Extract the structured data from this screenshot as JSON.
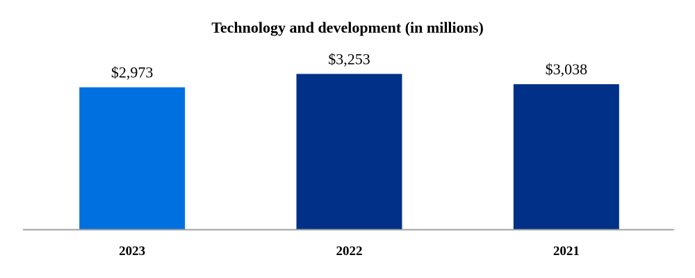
{
  "chart_data": {
    "type": "bar",
    "title": "Technology and development (in millions)",
    "categories": [
      "2023",
      "2022",
      "2021"
    ],
    "values": [
      2973,
      3253,
      3038
    ],
    "data_labels": [
      "$2,973",
      "$3,253",
      "$3,038"
    ],
    "colors": [
      "#0070E0",
      "#003087",
      "#003087"
    ],
    "xlabel": "",
    "ylabel": "",
    "ylim": [
      0,
      4000
    ],
    "grid": false,
    "legend": "none",
    "axis_color": "#A0A0A0"
  }
}
